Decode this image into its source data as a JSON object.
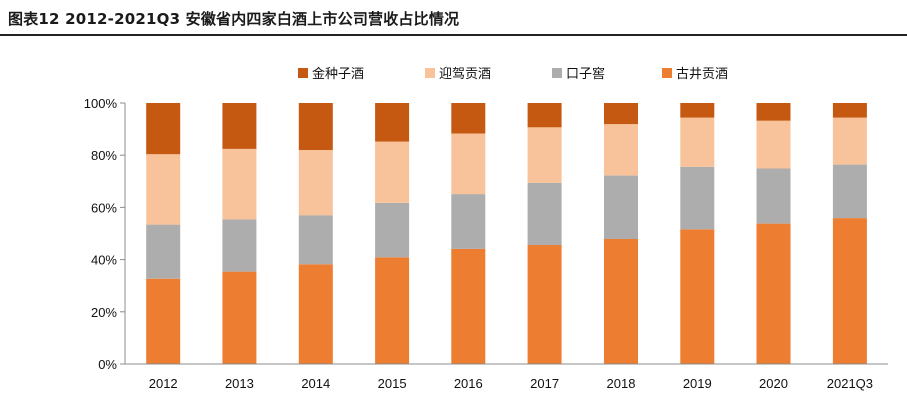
{
  "header": {
    "title": "图表12   2012-2021Q3 安徽省内四家白酒上市公司营收占比情况"
  },
  "chart_data": {
    "type": "bar",
    "stacked": true,
    "categories": [
      "2012",
      "2013",
      "2014",
      "2015",
      "2016",
      "2017",
      "2018",
      "2019",
      "2020",
      "2021Q3"
    ],
    "y_ticks": [
      "0%",
      "20%",
      "40%",
      "60%",
      "80%",
      "100%"
    ],
    "ylim": [
      0,
      100
    ],
    "grid": false,
    "legend_position": "top",
    "legend_order": [
      3,
      2,
      1,
      0
    ],
    "series": [
      {
        "name": "古井贡酒",
        "color": "#ED7D31",
        "values": [
          32.7,
          35.4,
          38.2,
          40.9,
          44.1,
          45.6,
          47.9,
          51.6,
          53.8,
          55.9
        ]
      },
      {
        "name": "口子窖",
        "color": "#ADADAD",
        "values": [
          20.7,
          20.0,
          18.8,
          20.8,
          21.0,
          23.8,
          24.3,
          23.9,
          21.1,
          20.5
        ]
      },
      {
        "name": "迎驾贡酒",
        "color": "#F8C29A",
        "values": [
          27.0,
          27.0,
          25.0,
          23.5,
          23.2,
          21.3,
          19.7,
          18.9,
          18.3,
          18.0
        ]
      },
      {
        "name": "金种子酒",
        "color": "#C65911",
        "values": [
          19.6,
          17.6,
          18.0,
          14.8,
          11.7,
          9.3,
          8.1,
          5.6,
          6.8,
          5.6
        ]
      }
    ]
  }
}
